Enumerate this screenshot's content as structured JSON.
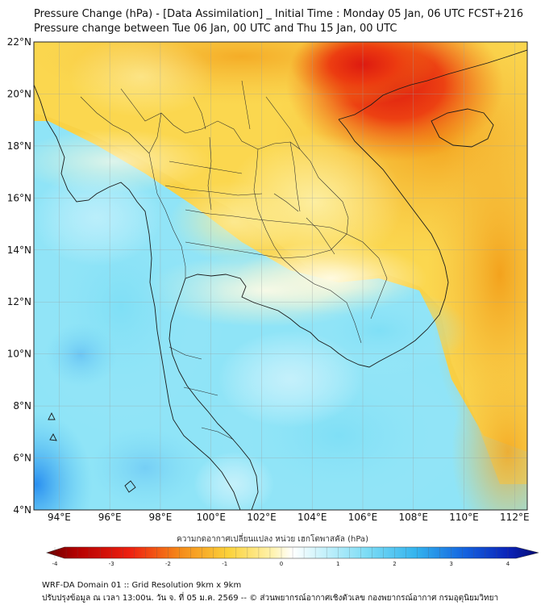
{
  "header": {
    "title_line1": "Pressure Change (hPa) - [Data Assimilation] _ Initial Time : Monday 05 Jan, 06 UTC FCST+216",
    "title_line2": "Pressure change between Tue 06 Jan, 00 UTC and Thu 15 Jan, 00 UTC"
  },
  "map": {
    "lat_labels": [
      "22°N",
      "20°N",
      "18°N",
      "16°N",
      "14°N",
      "12°N",
      "10°N",
      "8°N",
      "6°N",
      "4°N"
    ],
    "lon_labels": [
      "94°E",
      "96°E",
      "98°E",
      "100°E",
      "102°E",
      "104°E",
      "106°E",
      "108°E",
      "110°E",
      "112°E"
    ],
    "lat_range": [
      4,
      22
    ],
    "lon_range": [
      93,
      112.5
    ]
  },
  "colorbar": {
    "label": "ความกดอากาศเปลี่ยนแปลง หน่วย เฮกโตพาสคัล (hPa)",
    "ticks": [
      "-4",
      "-3",
      "-2",
      "-1",
      "0",
      "1",
      "2",
      "3",
      "4"
    ],
    "range": [
      -4,
      4
    ]
  },
  "footer": {
    "line1": "WRF-DA Domain 01 :: Grid Resolution 9km x 9km",
    "line2": "ปรับปรุงข้อมูล ณ เวลา 13:00น. วัน จ. ที่ 05 ม.ค. 2569 -- © ส่วนพยากรณ์อากาศเชิงตัวเลข กองพยากรณ์อากาศ กรมอุตุนิยมวิทยา"
  }
}
